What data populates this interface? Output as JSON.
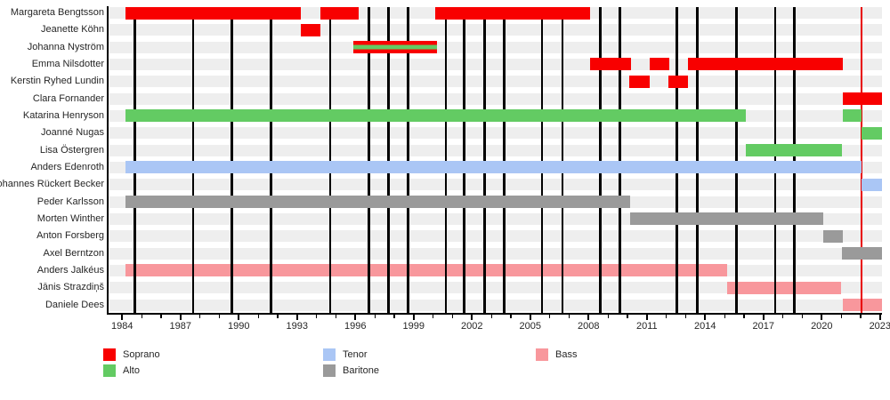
{
  "chart_data": {
    "type": "gantt-timeline",
    "title": "",
    "xlim": [
      1983.3,
      2023.1
    ],
    "x_major_tick_labels": [
      1984,
      1987,
      1990,
      1993,
      1996,
      1999,
      2002,
      2005,
      2008,
      2011,
      2014,
      2017,
      2020,
      2023
    ],
    "x_minor_tick_step_years": 1,
    "grid": "vertical-event-lines",
    "colors": {
      "Soprano": "#f80000",
      "Alto": "#63cb63",
      "Tenor": "#aac6f5",
      "Baritone": "#9a9a9a",
      "Bass": "#f8979c"
    },
    "today_line": {
      "year": 2022.05,
      "color": "#e80000"
    },
    "event_line_years": [
      1984.65,
      1987.65,
      1989.65,
      1991.65,
      1994.7,
      1996.7,
      1997.7,
      1998.7,
      2000.65,
      2001.6,
      2002.65,
      2003.65,
      2005.6,
      2006.65,
      2008.6,
      2009.6,
      2012.55,
      2013.6,
      2015.6,
      2017.6,
      2018.6
    ],
    "rows": [
      {
        "name": "Margareta Bengtsson",
        "voice": "Soprano",
        "segments": [
          [
            1984.15,
            1993.2
          ],
          [
            1994.2,
            1996.15
          ],
          [
            2000.1,
            2008.1
          ]
        ]
      },
      {
        "name": "Jeanette Köhn",
        "voice": "Soprano",
        "segments": [
          [
            1993.2,
            1994.2
          ]
        ]
      },
      {
        "name": "Johanna Nyström",
        "voice": "Soprano / Alto",
        "striped": true,
        "segments": [
          [
            1995.9,
            2000.2
          ]
        ]
      },
      {
        "name": "Emma Nilsdotter",
        "voice": "Soprano",
        "segments": [
          [
            2008.1,
            2010.2
          ],
          [
            2011.15,
            2012.15
          ],
          [
            2013.1,
            2021.1
          ]
        ]
      },
      {
        "name": "Kerstin Ryhed Lundin",
        "voice": "Soprano",
        "segments": [
          [
            2010.1,
            2011.15
          ],
          [
            2012.1,
            2013.1
          ]
        ]
      },
      {
        "name": "Clara Fornander",
        "voice": "Soprano",
        "segments": [
          [
            2021.1,
            2023.1
          ]
        ]
      },
      {
        "name": "Katarina Henryson",
        "voice": "Alto",
        "segments": [
          [
            1984.15,
            2016.1
          ],
          [
            2021.1,
            2022.05
          ]
        ]
      },
      {
        "name": "Joanné Nugas",
        "voice": "Alto",
        "segments": [
          [
            2022.05,
            2023.1
          ]
        ]
      },
      {
        "name": "Lisa Östergren",
        "voice": "Alto",
        "segments": [
          [
            2016.1,
            2021.05
          ]
        ]
      },
      {
        "name": "Anders Edenroth",
        "voice": "Tenor",
        "segments": [
          [
            1984.15,
            2022.05
          ]
        ]
      },
      {
        "name": "Johannes Rückert Becker",
        "voice": "Tenor",
        "segments": [
          [
            2022.05,
            2023.1
          ]
        ]
      },
      {
        "name": "Peder Karlsson",
        "voice": "Baritone",
        "segments": [
          [
            1984.15,
            2010.15
          ]
        ]
      },
      {
        "name": "Morten Winther",
        "voice": "Baritone",
        "segments": [
          [
            2010.15,
            2020.1
          ]
        ]
      },
      {
        "name": "Anton Forsberg",
        "voice": "Baritone",
        "segments": [
          [
            2020.1,
            2021.1
          ]
        ]
      },
      {
        "name": "Axel Berntzon",
        "voice": "Baritone",
        "segments": [
          [
            2021.05,
            2023.1
          ]
        ]
      },
      {
        "name": "Anders Jalkéus",
        "voice": "Bass",
        "segments": [
          [
            1984.15,
            2015.15
          ]
        ]
      },
      {
        "name": "Jānis Strazdiņš",
        "voice": "Bass",
        "segments": [
          [
            2015.15,
            2021.0
          ]
        ]
      },
      {
        "name": "Daniele Dees",
        "voice": "Bass",
        "segments": [
          [
            2021.1,
            2023.1
          ]
        ]
      }
    ],
    "legend": [
      {
        "label": "Soprano",
        "color": "#f80000"
      },
      {
        "label": "Alto",
        "color": "#63cb63"
      },
      {
        "label": "Tenor",
        "color": "#aac6f5"
      },
      {
        "label": "Baritone",
        "color": "#9a9a9a"
      },
      {
        "label": "Bass",
        "color": "#f8979c"
      }
    ],
    "legend_position": "bottom"
  }
}
